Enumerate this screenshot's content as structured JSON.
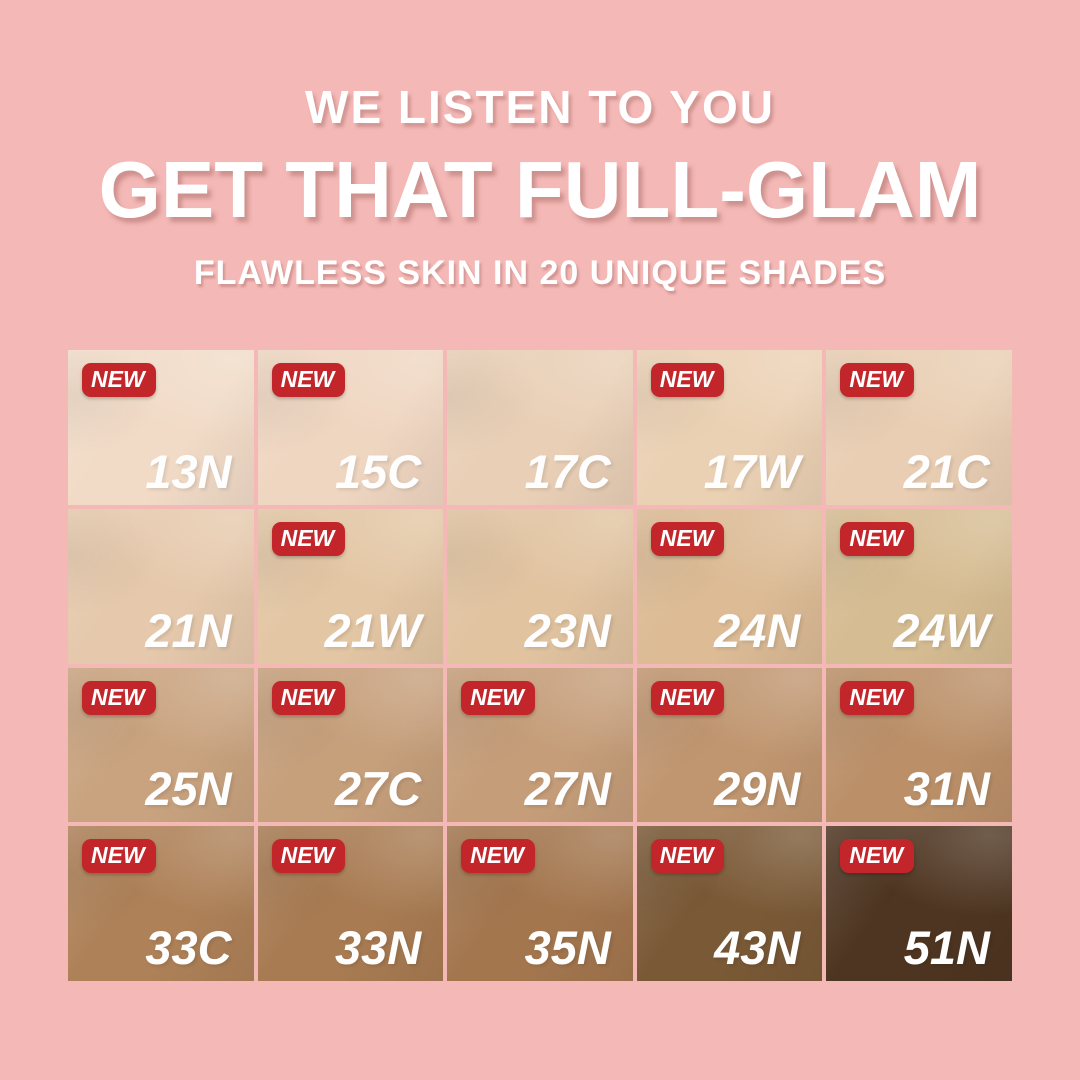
{
  "page": {
    "background": "#F4B8B6"
  },
  "header": {
    "kicker": "WE LISTEN TO YOU",
    "title": "GET THAT FULL-GLAM",
    "subtitle": "FLAWLESS SKIN IN 20 UNIQUE SHADES",
    "text_color": "#FFFFFF"
  },
  "badge": {
    "label": "NEW",
    "background": "#C2262A",
    "text_color": "#FFFFFF"
  },
  "grid": {
    "columns": 5,
    "rows": 4,
    "shade_count": 20,
    "shades": [
      {
        "label": "13N",
        "color": "#F1DBC7",
        "new": true
      },
      {
        "label": "15C",
        "color": "#EFD6C1",
        "new": true
      },
      {
        "label": "17C",
        "color": "#E9CFB6",
        "new": false
      },
      {
        "label": "17W",
        "color": "#EBD1B4",
        "new": true
      },
      {
        "label": "21C",
        "color": "#E9CEB3",
        "new": true
      },
      {
        "label": "21N",
        "color": "#E6C9AC",
        "new": false
      },
      {
        "label": "21W",
        "color": "#E3C6A4",
        "new": true
      },
      {
        "label": "23N",
        "color": "#E1C3A0",
        "new": false
      },
      {
        "label": "24N",
        "color": "#DCBB95",
        "new": true
      },
      {
        "label": "24W",
        "color": "#D6BC92",
        "new": true
      },
      {
        "label": "25N",
        "color": "#C9A37F",
        "new": true
      },
      {
        "label": "27C",
        "color": "#C69F7B",
        "new": true
      },
      {
        "label": "27N",
        "color": "#C59D79",
        "new": true
      },
      {
        "label": "29N",
        "color": "#C09670",
        "new": true
      },
      {
        "label": "31N",
        "color": "#BB9069",
        "new": true
      },
      {
        "label": "33C",
        "color": "#AE8158",
        "new": true
      },
      {
        "label": "33N",
        "color": "#A87B52",
        "new": true
      },
      {
        "label": "35N",
        "color": "#A3764E",
        "new": true
      },
      {
        "label": "43N",
        "color": "#7A5936",
        "new": true
      },
      {
        "label": "51N",
        "color": "#4E3521",
        "new": true
      }
    ]
  }
}
